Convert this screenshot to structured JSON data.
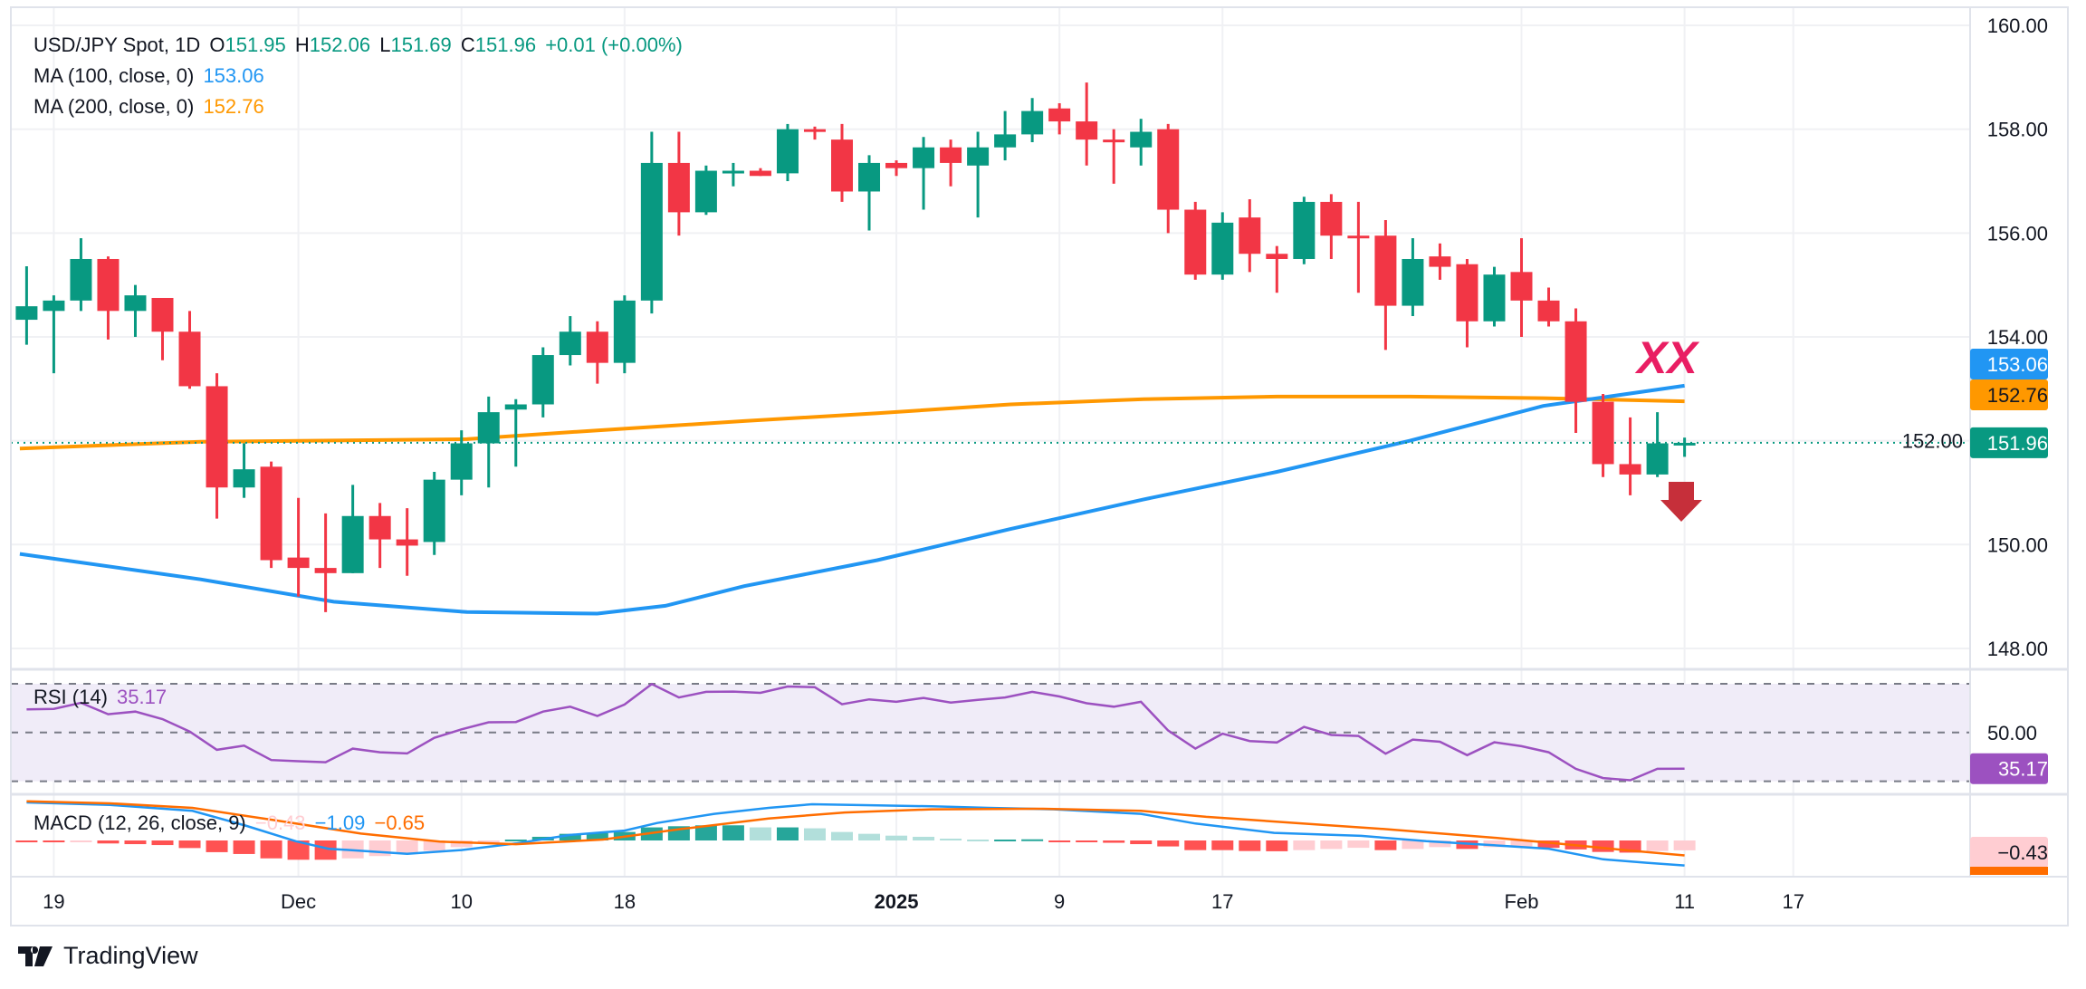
{
  "header": {
    "symbol": "USD/JPY Spot, 1D",
    "o_label": "O",
    "open": "151.95",
    "h_label": "H",
    "high": "152.06",
    "l_label": "L",
    "low": "151.69",
    "c_label": "C",
    "close": "151.96",
    "change": "+0.01 (+0.00%)"
  },
  "indicators": {
    "ma100_label": "MA (100, close, 0)",
    "ma100_value": "153.06",
    "ma200_label": "MA (200, close, 0)",
    "ma200_value": "152.76",
    "rsi_label": "RSI (14)",
    "rsi_value": "35.17",
    "macd_label": "MACD (12, 26, close, 9)",
    "macd_hist": "−0.43",
    "macd_line": "−1.09",
    "macd_signal": "−0.65"
  },
  "annotation": {
    "text": "XX",
    "arrow": "down-arrow-icon"
  },
  "brand": "TradingView",
  "colors": {
    "up": "#089981",
    "down": "#f23645",
    "ma100": "#2196f3",
    "ma200": "#ff9800",
    "rsi": "#9c51c0",
    "macd": "#2196f3",
    "signal": "#ff6d00",
    "annotation": "#e91e63",
    "arrow": "#c62f3a"
  },
  "chart_data": {
    "type": "candlestick",
    "title": "USD/JPY Spot, 1D",
    "price_axis": {
      "ticks": [
        "160.00",
        "158.00",
        "156.00",
        "154.00",
        "152.00",
        "150.00",
        "148.00"
      ],
      "range": [
        147.5,
        160.2
      ]
    },
    "last_labels": {
      "ma100": "153.06",
      "ma200": "152.76",
      "close": "151.96",
      "close_value": 151.96,
      "rsi": "35.17",
      "rsi_mid": "50.00",
      "macd_hist": "−0.43"
    },
    "x_ticks": [
      {
        "index": 1,
        "label": "19"
      },
      {
        "index": 10,
        "label": "Dec"
      },
      {
        "index": 16,
        "label": "10"
      },
      {
        "index": 22,
        "label": "18"
      },
      {
        "index": 32,
        "label": "2025",
        "bold": true
      },
      {
        "index": 38,
        "label": "9"
      },
      {
        "index": 44,
        "label": "17"
      },
      {
        "index": 55,
        "label": "Feb"
      },
      {
        "index": 61,
        "label": "11"
      },
      {
        "index": 65,
        "label": "17"
      }
    ],
    "ohlc": [
      [
        154.33,
        155.36,
        153.85,
        154.59
      ],
      [
        154.5,
        154.8,
        153.3,
        154.7
      ],
      [
        154.7,
        155.9,
        154.5,
        155.5
      ],
      [
        155.5,
        155.55,
        153.95,
        154.5
      ],
      [
        154.5,
        155.0,
        154.0,
        154.8
      ],
      [
        154.75,
        154.75,
        153.55,
        154.1
      ],
      [
        154.1,
        154.5,
        153.0,
        153.05
      ],
      [
        153.05,
        153.3,
        150.5,
        151.1
      ],
      [
        151.1,
        151.95,
        150.9,
        151.45
      ],
      [
        151.5,
        151.6,
        149.55,
        149.7
      ],
      [
        149.75,
        150.9,
        149.0,
        149.55
      ],
      [
        149.55,
        150.6,
        148.7,
        149.45
      ],
      [
        149.45,
        151.15,
        149.45,
        150.55
      ],
      [
        150.55,
        150.8,
        149.55,
        150.1
      ],
      [
        150.1,
        150.7,
        149.4,
        149.98
      ],
      [
        150.05,
        151.4,
        149.8,
        151.25
      ],
      [
        151.25,
        152.2,
        150.95,
        151.95
      ],
      [
        151.95,
        152.85,
        151.1,
        152.55
      ],
      [
        152.6,
        152.8,
        151.5,
        152.7
      ],
      [
        152.7,
        153.8,
        152.45,
        153.65
      ],
      [
        153.65,
        154.4,
        153.45,
        154.1
      ],
      [
        154.1,
        154.3,
        153.1,
        153.5
      ],
      [
        153.5,
        154.8,
        153.3,
        154.7
      ],
      [
        154.7,
        157.95,
        154.45,
        157.35
      ],
      [
        157.35,
        157.95,
        155.95,
        156.4
      ],
      [
        156.4,
        157.3,
        156.35,
        157.2
      ],
      [
        157.15,
        157.35,
        156.9,
        157.2
      ],
      [
        157.2,
        157.25,
        157.1,
        157.1
      ],
      [
        157.15,
        158.1,
        157.0,
        158.0
      ],
      [
        158.0,
        158.05,
        157.8,
        157.95
      ],
      [
        157.8,
        158.1,
        156.6,
        156.8
      ],
      [
        156.8,
        157.5,
        156.05,
        157.35
      ],
      [
        157.35,
        157.4,
        157.1,
        157.25
      ],
      [
        157.25,
        157.85,
        156.45,
        157.65
      ],
      [
        157.65,
        157.8,
        156.9,
        157.35
      ],
      [
        157.3,
        157.95,
        156.3,
        157.65
      ],
      [
        157.65,
        158.35,
        157.4,
        157.9
      ],
      [
        157.9,
        158.6,
        157.75,
        158.35
      ],
      [
        158.4,
        158.5,
        157.9,
        158.15
      ],
      [
        158.15,
        158.9,
        157.3,
        157.8
      ],
      [
        157.8,
        158.0,
        156.95,
        157.75
      ],
      [
        157.65,
        158.2,
        157.3,
        157.95
      ],
      [
        158.0,
        158.1,
        156.0,
        156.45
      ],
      [
        156.45,
        156.6,
        155.1,
        155.2
      ],
      [
        155.2,
        156.4,
        155.1,
        156.2
      ],
      [
        156.3,
        156.65,
        155.25,
        155.6
      ],
      [
        155.6,
        155.75,
        154.85,
        155.5
      ],
      [
        155.5,
        156.7,
        155.4,
        156.6
      ],
      [
        156.6,
        156.75,
        155.5,
        155.95
      ],
      [
        155.95,
        156.6,
        154.85,
        155.9
      ],
      [
        155.95,
        156.25,
        153.75,
        154.6
      ],
      [
        154.6,
        155.9,
        154.4,
        155.5
      ],
      [
        155.55,
        155.8,
        155.1,
        155.35
      ],
      [
        155.4,
        155.5,
        153.8,
        154.3
      ],
      [
        154.3,
        155.35,
        154.2,
        155.2
      ],
      [
        155.25,
        155.9,
        154.0,
        154.7
      ],
      [
        154.7,
        154.95,
        154.2,
        154.3
      ],
      [
        154.3,
        154.55,
        152.15,
        152.75
      ],
      [
        152.75,
        152.9,
        151.3,
        151.55
      ],
      [
        151.55,
        152.45,
        150.95,
        151.35
      ],
      [
        151.35,
        152.55,
        151.3,
        151.95
      ],
      [
        151.95,
        152.06,
        151.69,
        151.96
      ]
    ],
    "ma100": [
      [
        -0.25,
        149.82
      ],
      [
        6.4,
        149.33
      ],
      [
        11.3,
        148.9
      ],
      [
        16.2,
        148.7
      ],
      [
        21,
        148.67
      ],
      [
        23.5,
        148.82
      ],
      [
        26.4,
        149.2
      ],
      [
        31.3,
        149.7
      ],
      [
        36.2,
        150.3
      ],
      [
        41.1,
        150.87
      ],
      [
        46,
        151.4
      ],
      [
        50.9,
        152.0
      ],
      [
        55.8,
        152.67
      ],
      [
        61,
        153.06
      ]
    ],
    "ma200": [
      [
        -0.25,
        151.85
      ],
      [
        6.4,
        151.98
      ],
      [
        16.2,
        152.03
      ],
      [
        21,
        152.2
      ],
      [
        26.4,
        152.38
      ],
      [
        31.3,
        152.53
      ],
      [
        36.2,
        152.7
      ],
      [
        41.1,
        152.8
      ],
      [
        46,
        152.85
      ],
      [
        50.9,
        152.85
      ],
      [
        55.8,
        152.82
      ],
      [
        61,
        152.76
      ]
    ],
    "rsi": {
      "levels": [
        70,
        50,
        30
      ],
      "values": [
        59.5,
        59.7,
        62.2,
        57.5,
        58.6,
        55.5,
        50.4,
        42.9,
        44.6,
        38.7,
        38.2,
        37.8,
        43.4,
        41.9,
        41.4,
        47.8,
        51.3,
        54.2,
        54.3,
        58.6,
        60.6,
        56.8,
        61.5,
        69.9,
        64.4,
        66.7,
        66.8,
        66.3,
        68.9,
        68.6,
        61.6,
        63.6,
        62.6,
        64.2,
        62.3,
        63.4,
        64.4,
        66.7,
        64.8,
        62.0,
        60.6,
        62.6,
        50.8,
        43.4,
        49.5,
        46.5,
        45.9,
        52.3,
        49.0,
        48.6,
        41.3,
        47.1,
        46.2,
        40.7,
        46.0,
        44.4,
        41.9,
        35.1,
        31.3,
        30.4,
        35.1,
        35.17
      ]
    },
    "macd": {
      "line": [
        [
          0,
          1.66
        ],
        [
          3.06,
          1.55
        ],
        [
          6.1,
          1.29
        ],
        [
          8.1,
          0.63
        ],
        [
          9.9,
          -0.03
        ],
        [
          11.1,
          -0.36
        ],
        [
          14,
          -0.58
        ],
        [
          16,
          -0.42
        ],
        [
          18,
          -0.13
        ],
        [
          20,
          0.24
        ],
        [
          22,
          0.43
        ],
        [
          23.2,
          0.76
        ],
        [
          25.3,
          1.16
        ],
        [
          27.3,
          1.42
        ],
        [
          28.9,
          1.58
        ],
        [
          31.3,
          1.53
        ],
        [
          33.3,
          1.49
        ],
        [
          35.4,
          1.42
        ],
        [
          37.8,
          1.36
        ],
        [
          41,
          1.16
        ],
        [
          43,
          0.74
        ],
        [
          45.9,
          0.33
        ],
        [
          49.1,
          0.2
        ],
        [
          51.5,
          -0.03
        ],
        [
          53.9,
          -0.2
        ],
        [
          56,
          -0.36
        ],
        [
          58,
          -0.82
        ],
        [
          59.6,
          -0.97
        ],
        [
          61,
          -1.09
        ]
      ],
      "signal": [
        [
          0,
          1.71
        ],
        [
          3.06,
          1.62
        ],
        [
          6.1,
          1.42
        ],
        [
          9.1,
          0.89
        ],
        [
          12.3,
          0.3
        ],
        [
          15.2,
          -0.05
        ],
        [
          18,
          -0.16
        ],
        [
          21.2,
          0.04
        ],
        [
          24.1,
          0.5
        ],
        [
          27.3,
          0.96
        ],
        [
          30.1,
          1.22
        ],
        [
          33.3,
          1.36
        ],
        [
          37.4,
          1.38
        ],
        [
          41,
          1.29
        ],
        [
          43.4,
          1.03
        ],
        [
          46.7,
          0.76
        ],
        [
          49.9,
          0.5
        ],
        [
          53.9,
          0.13
        ],
        [
          56.3,
          -0.13
        ],
        [
          58.8,
          -0.42
        ],
        [
          61,
          -0.65
        ]
      ],
      "histogram": [
        -0.08,
        -0.08,
        -0.04,
        -0.13,
        -0.16,
        -0.2,
        -0.33,
        -0.51,
        -0.59,
        -0.78,
        -0.84,
        -0.84,
        -0.78,
        -0.68,
        -0.55,
        -0.45,
        -0.29,
        -0.13,
        0.04,
        0.16,
        0.29,
        0.32,
        0.37,
        0.57,
        0.62,
        0.66,
        0.66,
        0.57,
        0.57,
        0.53,
        0.37,
        0.29,
        0.21,
        0.16,
        0.08,
        0.04,
        0.04,
        0.05,
        -0.04,
        -0.07,
        -0.1,
        -0.16,
        -0.26,
        -0.42,
        -0.42,
        -0.46,
        -0.47,
        -0.42,
        -0.37,
        -0.32,
        -0.42,
        -0.37,
        -0.29,
        -0.37,
        -0.29,
        -0.26,
        -0.32,
        -0.39,
        -0.5,
        -0.53,
        -0.46,
        -0.43
      ]
    }
  }
}
